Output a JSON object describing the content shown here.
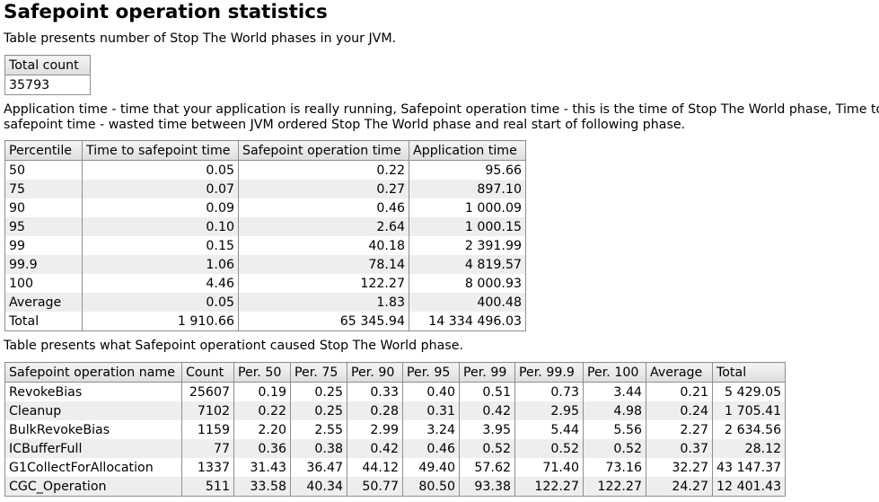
{
  "title": "Safepoint operation statistics",
  "intro": "Table presents number of Stop The World phases in your JVM.",
  "total_table": {
    "header": "Total count",
    "value": "35793"
  },
  "description_line1": "Application time - time that your application is really running, Safepoint operation time - this is the time of Stop The World phase, Time to",
  "description_line2": "safepoint time - wasted time between JVM ordered Stop The World phase and real start of following phase.",
  "percentile_table": {
    "headers": [
      "Percentile",
      "Time to safepoint time",
      "Safepoint operation time",
      "Application time"
    ],
    "rows": [
      [
        "50",
        "0.05",
        "0.22",
        "95.66"
      ],
      [
        "75",
        "0.07",
        "0.27",
        "897.10"
      ],
      [
        "90",
        "0.09",
        "0.46",
        "1 000.09"
      ],
      [
        "95",
        "0.10",
        "2.64",
        "1 000.15"
      ],
      [
        "99",
        "0.15",
        "40.18",
        "2 391.99"
      ],
      [
        "99.9",
        "1.06",
        "78.14",
        "4 819.57"
      ],
      [
        "100",
        "4.46",
        "122.27",
        "8 000.93"
      ],
      [
        "Average",
        "0.05",
        "1.83",
        "400.48"
      ],
      [
        "Total",
        "1 910.66",
        "65 345.94",
        "14 334 496.03"
      ]
    ]
  },
  "operations_intro": "Table presents what Safepoint operationt caused Stop The World phase.",
  "operations_table": {
    "headers": [
      "Safepoint operation name",
      "Count",
      "Per. 50",
      "Per. 75",
      "Per. 90",
      "Per. 95",
      "Per. 99",
      "Per. 99.9",
      "Per. 100",
      "Average",
      "Total"
    ],
    "rows": [
      [
        "RevokeBias",
        "25607",
        "0.19",
        "0.25",
        "0.33",
        "0.40",
        "0.51",
        "0.73",
        "3.44",
        "0.21",
        "5 429.05"
      ],
      [
        "Cleanup",
        "7102",
        "0.22",
        "0.25",
        "0.28",
        "0.31",
        "0.42",
        "2.95",
        "4.98",
        "0.24",
        "1 705.41"
      ],
      [
        "BulkRevokeBias",
        "1159",
        "2.20",
        "2.55",
        "2.99",
        "3.24",
        "3.95",
        "5.44",
        "5.56",
        "2.27",
        "2 634.56"
      ],
      [
        "ICBufferFull",
        "77",
        "0.36",
        "0.38",
        "0.42",
        "0.46",
        "0.52",
        "0.52",
        "0.52",
        "0.37",
        "28.12"
      ],
      [
        "G1CollectForAllocation",
        "1337",
        "31.43",
        "36.47",
        "44.12",
        "49.40",
        "57.62",
        "71.40",
        "73.16",
        "32.27",
        "43 147.37"
      ],
      [
        "CGC_Operation",
        "511",
        "33.58",
        "40.34",
        "50.77",
        "80.50",
        "93.38",
        "122.27",
        "122.27",
        "24.27",
        "12 401.43"
      ]
    ]
  }
}
